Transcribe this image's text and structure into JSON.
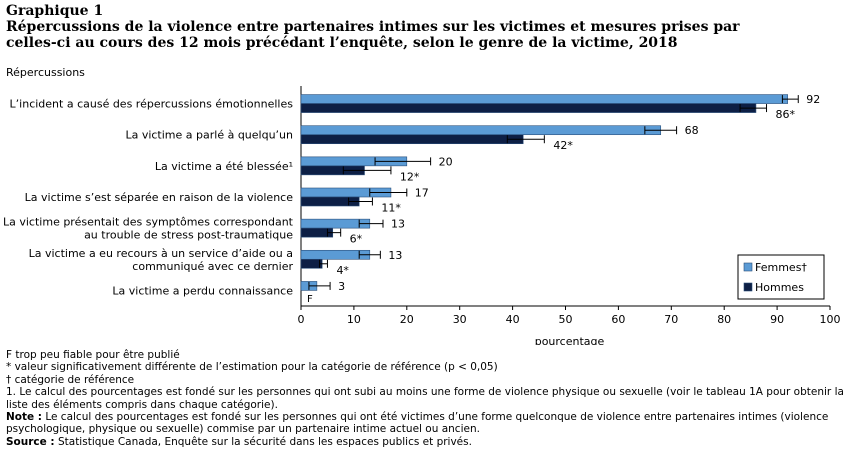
{
  "header": {
    "label": "Graphique 1",
    "title_line1": "Répercussions de la violence entre partenaires intimes sur les victimes et mesures prises par",
    "title_line2": "celles-ci au cours des 12 mois précédant l’enquête, selon le genre de la victime, 2018"
  },
  "chart_data": {
    "type": "bar",
    "orientation": "horizontal",
    "ylabel": "Répercussions",
    "xlabel": "pourcentage",
    "xlim": [
      0,
      100
    ],
    "xticks": [
      0,
      10,
      20,
      30,
      40,
      50,
      60,
      70,
      80,
      90,
      100
    ],
    "grid": false,
    "legend_position": "bottom-right",
    "categories": [
      [
        "L’incident a causé des répercussions émotionnelles"
      ],
      [
        "La victime a parlé à quelqu’un"
      ],
      [
        "La victime a été blessée¹"
      ],
      [
        "La victime s’est séparée en raison de la violence"
      ],
      [
        "La victime présentait des symptômes correspondant",
        "au trouble de stress post-traumatique"
      ],
      [
        "La victime a eu recours à un service d’aide ou a",
        "communiqué avec ce dernier"
      ],
      [
        "La victime a perdu connaissance"
      ]
    ],
    "series": [
      {
        "name": "Femmes†",
        "color": "#5b9bd5",
        "values": [
          92,
          68,
          20,
          17,
          13,
          13,
          3
        ],
        "labels": [
          "92",
          "68",
          "20",
          "17",
          "13",
          "13",
          "3"
        ],
        "ci_low": [
          91,
          65,
          14,
          13,
          11,
          11,
          1.5
        ],
        "ci_high": [
          94,
          71,
          24.5,
          20,
          15.5,
          15,
          5.5
        ]
      },
      {
        "name": "Hommes",
        "color": "#0d1f45",
        "values": [
          86,
          42,
          12,
          11,
          6,
          4,
          null
        ],
        "labels": [
          "86*",
          "42*",
          "12*",
          "11*",
          "6*",
          "4*",
          "F"
        ],
        "ci_low": [
          83,
          39,
          8,
          9,
          5,
          3.5,
          null
        ],
        "ci_high": [
          88,
          46,
          17,
          13.5,
          7.5,
          5,
          null
        ]
      }
    ]
  },
  "notes": {
    "f_note": "F trop peu fiable pour être publié",
    "star_note": "* valeur significativement différente de l’estimation pour la catégorie de référence (p < 0,05)",
    "dagger_note": "† catégorie de référence",
    "note1": "1. Le calcul des pourcentages est fondé sur les personnes qui ont subi au moins une forme de violence physique ou sexuelle (voir le tableau 1A pour obtenir la liste des éléments compris dans chaque catégorie).",
    "note_label": "Note :",
    "note_text": " Le calcul des pourcentages est fondé sur les personnes qui ont été victimes d’une forme quelconque de violence entre partenaires intimes (violence psychologique, physique ou sexuelle) commise par un partenaire intime actuel ou ancien.",
    "source_label": "Source :",
    "source_text": " Statistique Canada, Enquête sur la sécurité dans les espaces publics et privés."
  }
}
